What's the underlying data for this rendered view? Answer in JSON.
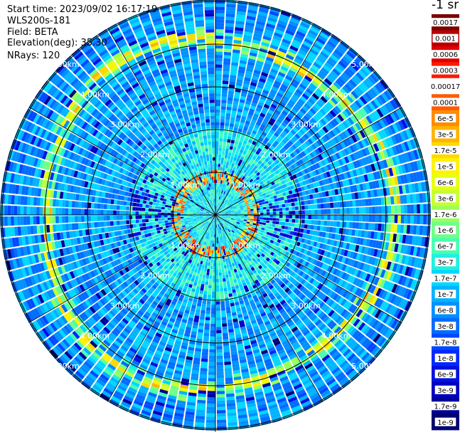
{
  "header": {
    "start_time": "Start time: 2023/09/02 16:17:19",
    "instrument": "WLS200s-181",
    "field": "Field: BETA",
    "elevation": "Elevation(deg): 35.30",
    "nrays": "NRays: 120"
  },
  "colorbar": {
    "unit": "-1 sr",
    "labels": [
      "0.0017",
      "0.001",
      "0.0006",
      "0.0003",
      "0.00017",
      "0.0001",
      "6e-5",
      "3e-5",
      "1.7e-5",
      "1e-5",
      "6e-6",
      "3e-6",
      "1.7e-6",
      "1e-6",
      "6e-7",
      "3e-7",
      "1.7e-7",
      "1e-7",
      "6e-8",
      "3e-8",
      "1.7e-8",
      "1e-8",
      "6e-9",
      "3e-9",
      "1.7e-9",
      "1e-9"
    ],
    "colors": [
      "#7a0000",
      "#b80000",
      "#e00000",
      "#ff1a00",
      "#ffffff",
      "#ff5a00",
      "#ff8c00",
      "#ffb400",
      "#ffd800",
      "#fff200",
      "#e8ff10",
      "#c4ff30",
      "#9aff5a",
      "#70ff88",
      "#48ffb0",
      "#20f0e0",
      "#00d8ff",
      "#00b4ff",
      "#0090ff",
      "#006cff",
      "#0048ff",
      "#0028ff",
      "#0010e0",
      "#0000c0",
      "#00009a",
      "#000070"
    ]
  },
  "range_rings": {
    "labels": [
      "1.00km",
      "2.00km",
      "3.00km",
      "4.00km",
      "5.00km"
    ],
    "distances_km": [
      1,
      2,
      3,
      4,
      5
    ]
  },
  "scan": {
    "type": "ppi",
    "n_rays": 120,
    "max_range_km": 5.8,
    "aerosol_ring_km": 4.1,
    "near_ring_km": 0.9
  }
}
